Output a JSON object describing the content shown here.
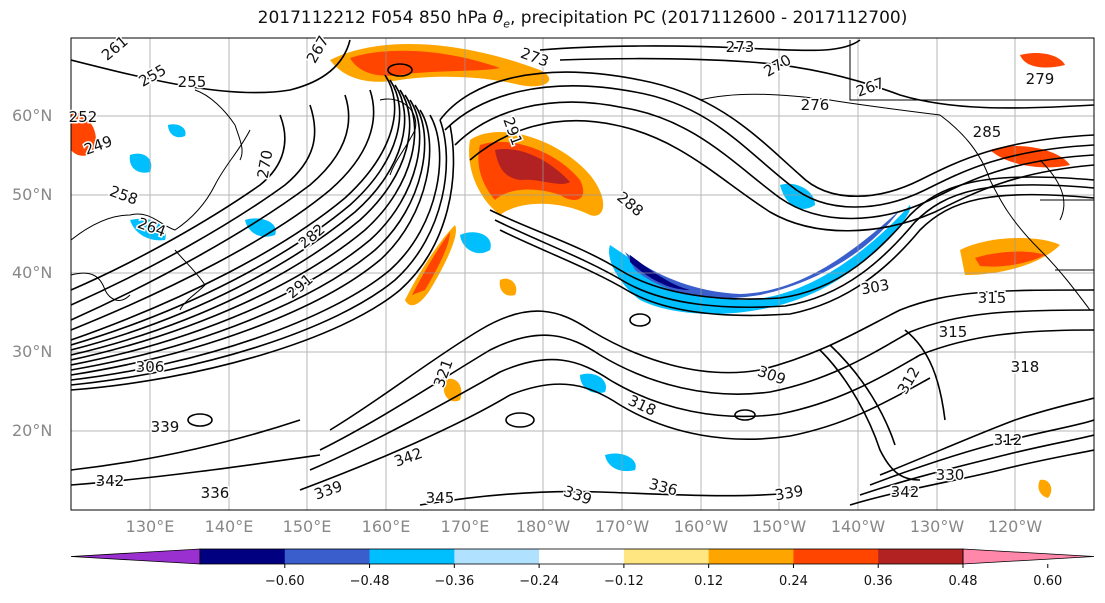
{
  "title": {
    "prefix": "2017112212 F054 850 hPa ",
    "theta": "θ",
    "sub": "e",
    "suffix": ", precipitation PC (2017112600 - 2017112700)"
  },
  "lat_labels": [
    "60°N",
    "50°N",
    "40°N",
    "30°N",
    "20°N"
  ],
  "lon_labels": [
    "130°E",
    "140°E",
    "150°E",
    "160°E",
    "170°E",
    "180°W",
    "170°W",
    "160°W",
    "150°W",
    "140°W",
    "130°W",
    "120°W"
  ],
  "colorbar": {
    "ticks": [
      "−0.60",
      "−0.48",
      "−0.36",
      "−0.24",
      "−0.12",
      "0.12",
      "0.24",
      "0.36",
      "0.48",
      "0.60"
    ],
    "colors": [
      "#9b30d0",
      "#000080",
      "#3a5fcd",
      "#00bfff",
      "#b0e2ff",
      "#ffffff",
      "#ffe680",
      "#ffa500",
      "#ff4500",
      "#b22222",
      "#ff88aa"
    ]
  },
  "contour_labels": [
    {
      "text": "261"
    },
    {
      "text": "267"
    },
    {
      "text": "255"
    },
    {
      "text": "255"
    },
    {
      "text": "252"
    },
    {
      "text": "249"
    },
    {
      "text": "258"
    },
    {
      "text": "264"
    },
    {
      "text": "270"
    },
    {
      "text": "273"
    },
    {
      "text": "273"
    },
    {
      "text": "270"
    },
    {
      "text": "267"
    },
    {
      "text": "276"
    },
    {
      "text": "285"
    },
    {
      "text": "279"
    },
    {
      "text": "291"
    },
    {
      "text": "288"
    },
    {
      "text": "282"
    },
    {
      "text": "291"
    },
    {
      "text": "303"
    },
    {
      "text": "315"
    },
    {
      "text": "315"
    },
    {
      "text": "312"
    },
    {
      "text": "318"
    },
    {
      "text": "309"
    },
    {
      "text": "318"
    },
    {
      "text": "306"
    },
    {
      "text": "339"
    },
    {
      "text": "321"
    },
    {
      "text": "312"
    },
    {
      "text": "342"
    },
    {
      "text": "345"
    },
    {
      "text": "339"
    },
    {
      "text": "336"
    },
    {
      "text": "339"
    },
    {
      "text": "330"
    },
    {
      "text": "342"
    },
    {
      "text": "342"
    },
    {
      "text": "336"
    },
    {
      "text": "339"
    }
  ]
}
